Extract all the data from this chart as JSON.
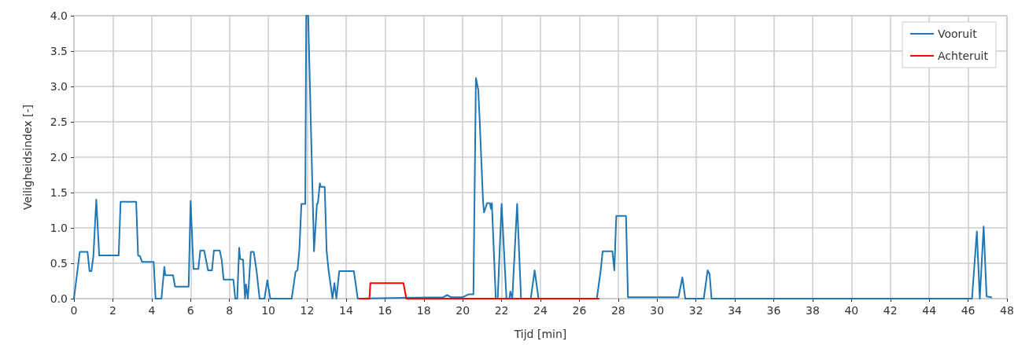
{
  "chart_data": {
    "type": "line",
    "xlabel": "Tijd [min]",
    "ylabel": "Veiligheidsindex [-]",
    "xlim": [
      0,
      48
    ],
    "xticks": [
      0,
      2,
      4,
      6,
      8,
      10,
      12,
      14,
      16,
      18,
      20,
      22,
      24,
      26,
      28,
      30,
      32,
      34,
      36,
      38,
      40,
      42,
      44,
      46,
      48
    ],
    "ylim": [
      0,
      4
    ],
    "yticks": [
      {
        "value": 0,
        "label": "0.0"
      },
      {
        "value": 0.5,
        "label": "0.5"
      },
      {
        "value": 1,
        "label": "1.0"
      },
      {
        "value": 1.5,
        "label": "1.5"
      },
      {
        "value": 2,
        "label": "2.0"
      },
      {
        "value": 2.5,
        "label": "2.5"
      },
      {
        "value": 3,
        "label": "3.0"
      },
      {
        "value": 3.5,
        "label": "3.5"
      },
      {
        "value": 4,
        "label": "4.0"
      }
    ],
    "grid": true,
    "legend": "top right",
    "marker": "none",
    "line_style": "solid",
    "series": [
      {
        "name": "Vooruit",
        "color": "#1f77b4",
        "x": [
          0,
          0.3,
          0.7,
          0.8,
          0.9,
          1.0,
          1.15,
          1.3,
          2.3,
          2.4,
          3.2,
          3.3,
          3.4,
          3.5,
          4.1,
          4.2,
          4.5,
          4.65,
          4.7,
          5.1,
          5.2,
          5.9,
          6.0,
          6.15,
          6.4,
          6.5,
          6.7,
          6.9,
          7.1,
          7.2,
          7.5,
          7.6,
          7.7,
          8.2,
          8.3,
          8.4,
          8.5,
          8.55,
          8.7,
          8.8,
          8.85,
          8.95,
          9.1,
          9.25,
          9.4,
          9.55,
          9.8,
          9.95,
          10.1,
          11.2,
          11.4,
          11.5,
          11.6,
          11.7,
          11.9,
          11.95,
          12.05,
          12.35,
          12.5,
          12.55,
          12.65,
          12.7,
          12.9,
          13.0,
          13.1,
          13.3,
          13.4,
          13.5,
          13.65,
          14.4,
          14.6,
          19.0,
          19.2,
          19.4,
          20.0,
          20.3,
          20.55,
          20.68,
          20.8,
          20.88,
          20.92,
          21.05,
          21.1,
          21.25,
          21.4,
          21.45,
          21.5,
          21.7,
          21.8,
          22.0,
          22.25,
          22.4,
          22.45,
          22.55,
          22.8,
          23.0,
          23.5,
          23.7,
          23.9,
          26.9,
          27.1,
          27.2,
          27.7,
          27.8,
          27.9,
          28.4,
          28.5,
          31.1,
          31.3,
          31.45,
          32.4,
          32.6,
          32.7,
          32.8,
          46.2,
          46.45,
          46.6,
          46.8,
          46.95,
          47.2
        ],
        "values": [
          0,
          0.66,
          0.66,
          0.39,
          0.39,
          0.6,
          1.4,
          0.61,
          0.61,
          1.37,
          1.37,
          0.61,
          0.6,
          0.52,
          0.52,
          0,
          0,
          0.45,
          0.33,
          0.33,
          0.17,
          0.17,
          1.38,
          0.42,
          0.42,
          0.68,
          0.68,
          0.4,
          0.4,
          0.68,
          0.68,
          0.55,
          0.27,
          0.27,
          0,
          0,
          0.72,
          0.56,
          0.55,
          0,
          0.2,
          0,
          0.66,
          0.66,
          0.38,
          0,
          0,
          0.26,
          0,
          0,
          0.38,
          0.4,
          0.7,
          1.34,
          1.34,
          4.0,
          4.0,
          0.67,
          1.34,
          1.35,
          1.63,
          1.58,
          1.58,
          0.67,
          0.4,
          0,
          0.22,
          0,
          0.39,
          0.39,
          0,
          0.02,
          0.05,
          0.02,
          0.02,
          0.06,
          0.06,
          3.12,
          2.95,
          2.48,
          2.2,
          1.35,
          1.22,
          1.35,
          1.35,
          1.27,
          1.35,
          0,
          0,
          1.34,
          0,
          0,
          0.1,
          0,
          1.34,
          0,
          0,
          0.4,
          0,
          0,
          0.4,
          0.67,
          0.67,
          0.4,
          1.17,
          1.17,
          0.02,
          0.02,
          0.3,
          0,
          0,
          0.4,
          0.35,
          0,
          0,
          0.95,
          0,
          1.02,
          0.03,
          0.02
        ]
      },
      {
        "name": "Achteruit",
        "color": "#ff0000",
        "x": [
          14.7,
          15.2,
          15.25,
          16.95,
          17.1,
          27.0
        ],
        "values": [
          0,
          0,
          0.22,
          0.22,
          0,
          0
        ]
      }
    ]
  }
}
